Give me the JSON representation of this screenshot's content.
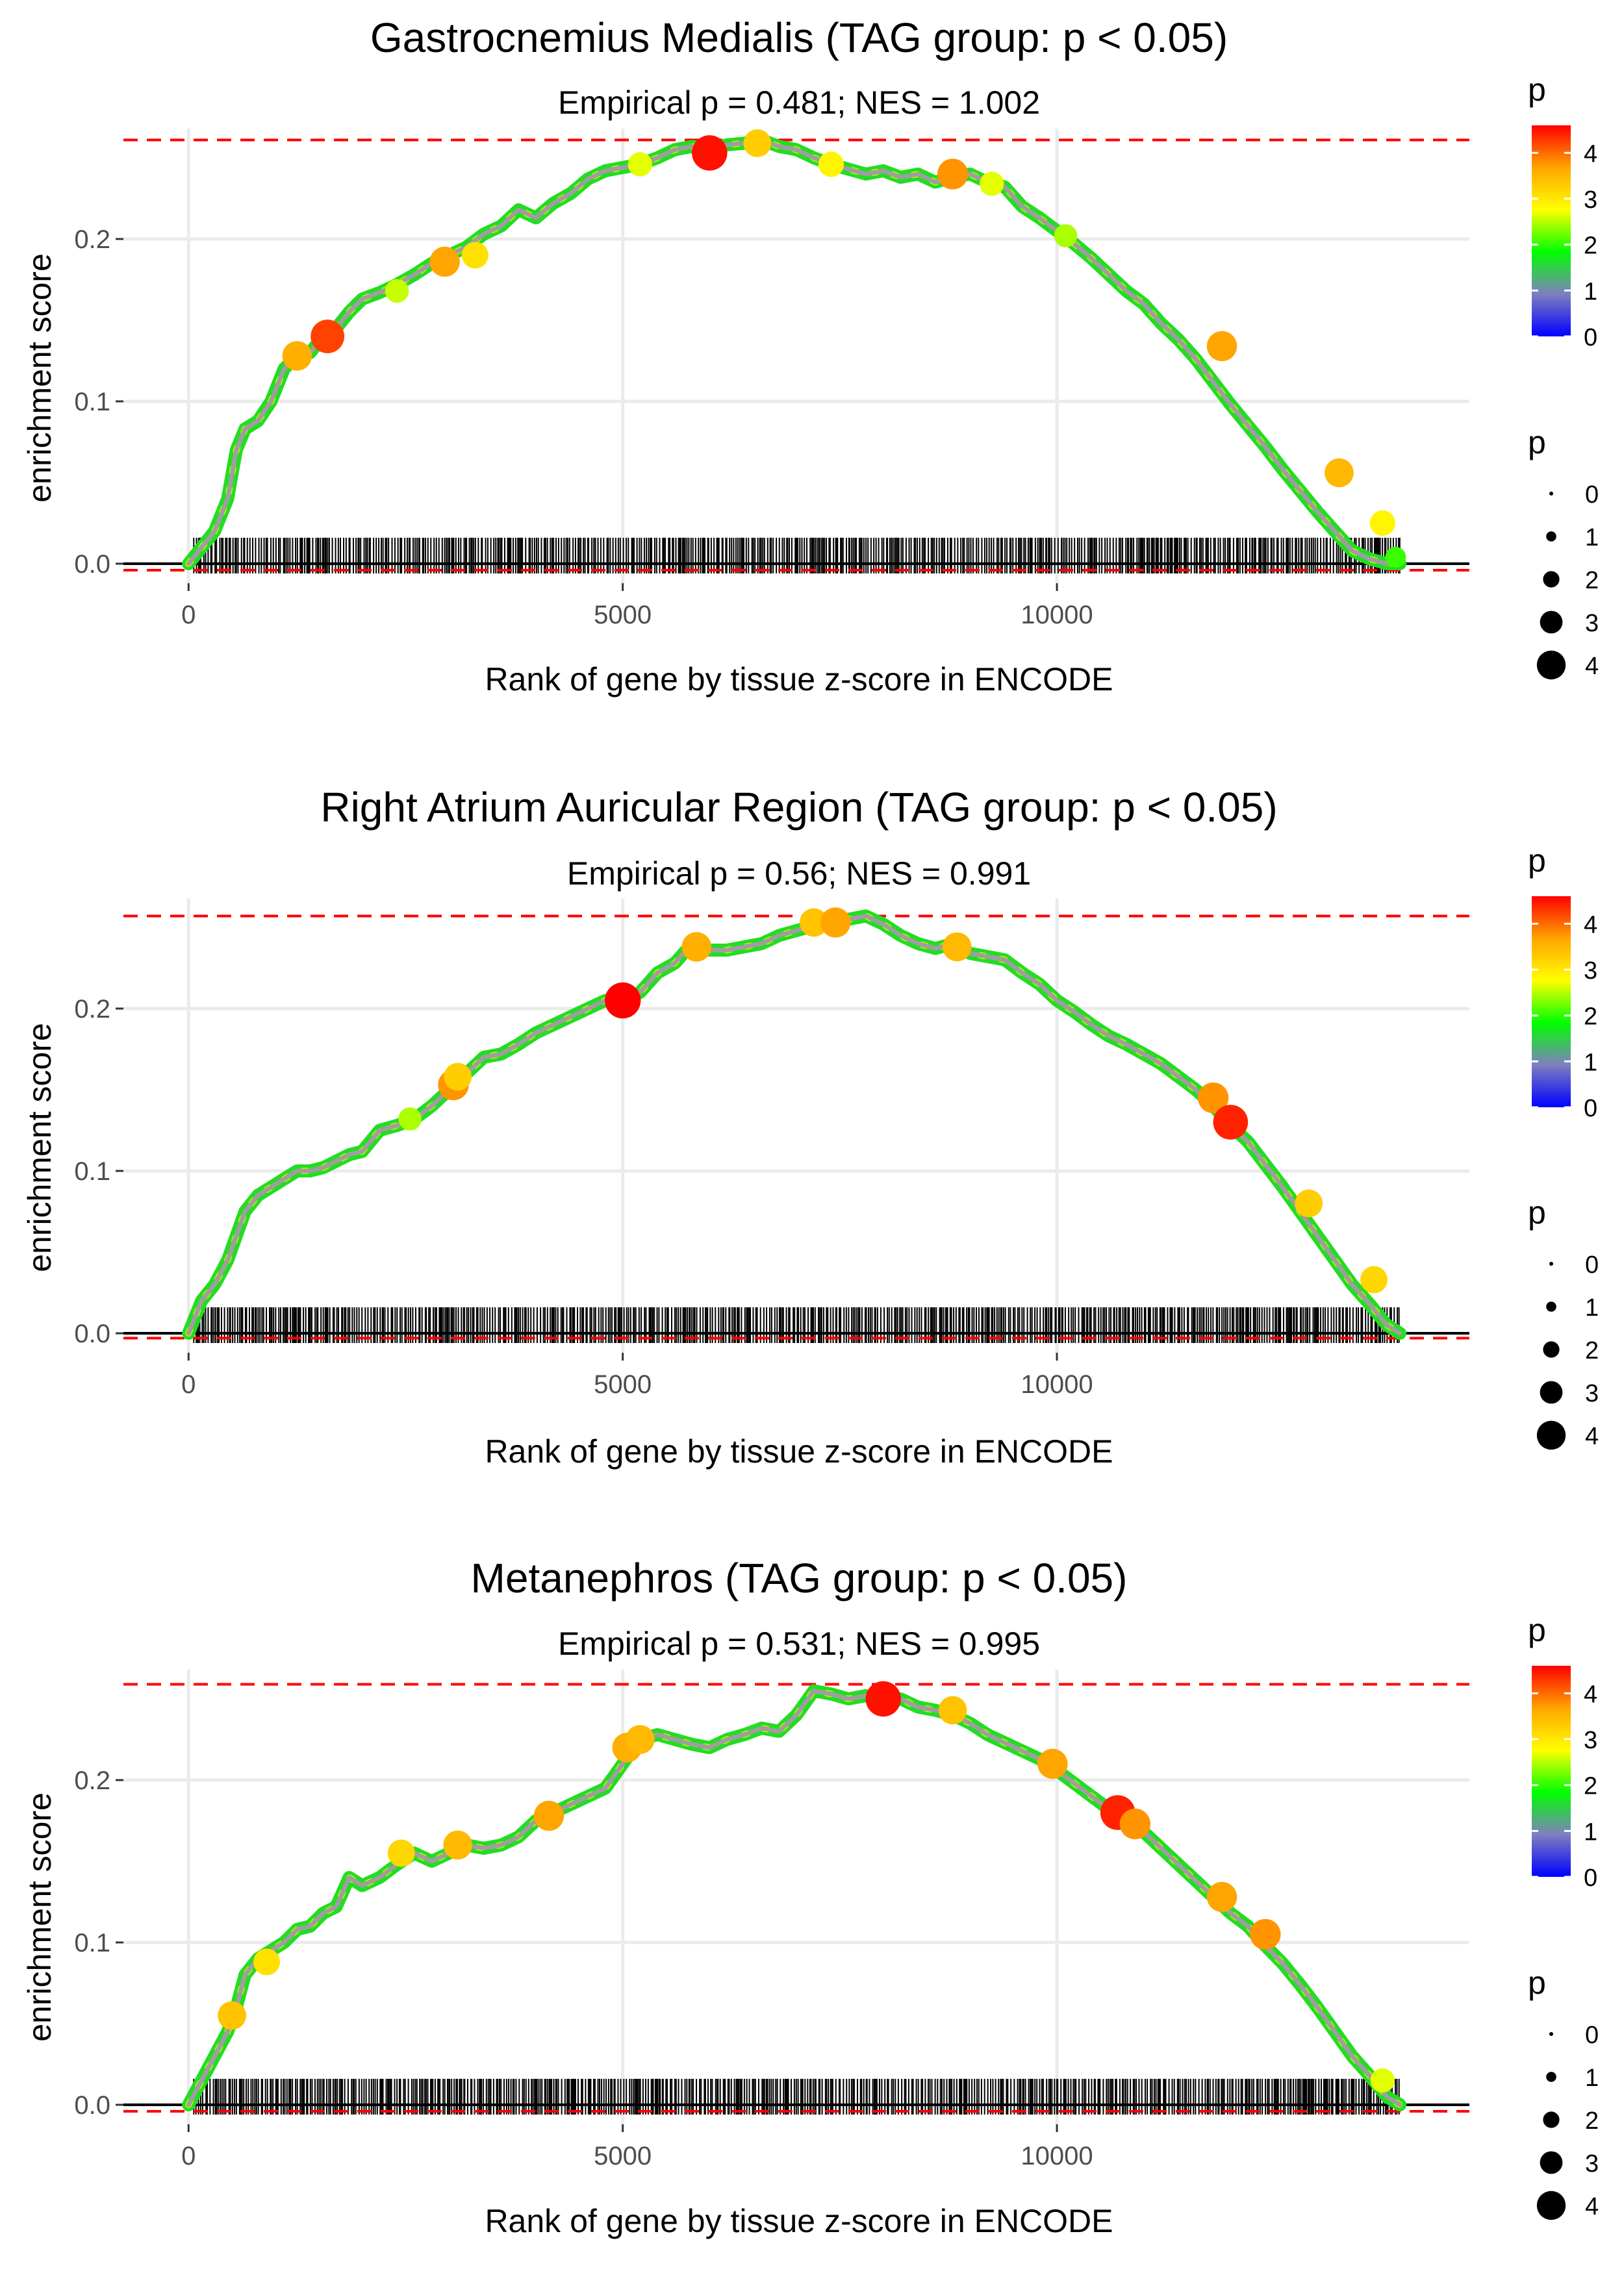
{
  "figure": {
    "xlabel": "Rank of gene by tissue z-score in ENCODE",
    "ylabel": "enrichment score",
    "legend_color_title": "p",
    "legend_size_title": "p",
    "colorbar_ticks": [
      "0",
      "1",
      "2",
      "3",
      "4"
    ],
    "size_legend_labels": [
      "0",
      "1",
      "2",
      "3",
      "4"
    ],
    "colorbar_stops": [
      "#0000ff",
      "#7f7fbf",
      "#00ff00",
      "#ffff00",
      "#ffa500",
      "#ff0000"
    ],
    "colors": {
      "threshold_line": "#ff0000",
      "zero_line": "#000000",
      "grid": "#ebebeb",
      "curve": "#9e9e9e"
    }
  },
  "chart_data": [
    {
      "type": "line",
      "title": "Gastrocnemius Medialis (TAG group: p < 0.05)",
      "subtitle": "Empirical p = 0.481; NES = 1.002",
      "xlabel": "Rank of gene by tissue z-score in ENCODE",
      "ylabel": "enrichment score",
      "xlim": [
        -750,
        14750
      ],
      "ylim": [
        -0.012,
        0.268
      ],
      "x_ticks": [
        0,
        5000,
        10000
      ],
      "x_tick_labels": [
        "0",
        "5000",
        "10000"
      ],
      "y_ticks": [
        0.0,
        0.1,
        0.2
      ],
      "y_tick_labels": [
        "0.0",
        "0.1",
        "0.2"
      ],
      "max_es_line": 0.261,
      "min_es_line": -0.004,
      "curve": {
        "x": [
          0,
          150,
          300,
          450,
          550,
          650,
          800,
          950,
          1100,
          1250,
          1400,
          1550,
          1700,
          1850,
          2000,
          2200,
          2400,
          2600,
          2800,
          3000,
          3200,
          3400,
          3600,
          3800,
          4000,
          4200,
          4400,
          4600,
          4800,
          5000,
          5200,
          5400,
          5600,
          5800,
          6000,
          6200,
          6400,
          6600,
          6800,
          7000,
          7200,
          7400,
          7600,
          7800,
          8000,
          8200,
          8400,
          8600,
          8800,
          9000,
          9200,
          9400,
          9600,
          9800,
          10000,
          10200,
          10400,
          10600,
          10800,
          11000,
          11200,
          11400,
          11600,
          11800,
          12000,
          12200,
          12400,
          12600,
          12800,
          13000,
          13200,
          13400,
          13600,
          13800,
          13950
        ],
        "y": [
          0.0,
          0.01,
          0.02,
          0.04,
          0.07,
          0.083,
          0.088,
          0.1,
          0.12,
          0.128,
          0.13,
          0.14,
          0.145,
          0.155,
          0.163,
          0.167,
          0.172,
          0.178,
          0.185,
          0.19,
          0.195,
          0.203,
          0.208,
          0.218,
          0.213,
          0.222,
          0.228,
          0.237,
          0.242,
          0.244,
          0.246,
          0.25,
          0.255,
          0.257,
          0.255,
          0.258,
          0.259,
          0.261,
          0.257,
          0.255,
          0.25,
          0.246,
          0.243,
          0.24,
          0.242,
          0.238,
          0.24,
          0.235,
          0.238,
          0.24,
          0.235,
          0.232,
          0.22,
          0.213,
          0.205,
          0.197,
          0.188,
          0.178,
          0.168,
          0.16,
          0.148,
          0.138,
          0.126,
          0.112,
          0.098,
          0.085,
          0.072,
          0.058,
          0.045,
          0.032,
          0.02,
          0.008,
          0.003,
          0.0,
          0.0
        ]
      },
      "highlight_points": [
        {
          "x": 1250,
          "y": 0.128,
          "p": 3.5
        },
        {
          "x": 1600,
          "y": 0.14,
          "p": 4.2
        },
        {
          "x": 2400,
          "y": 0.168,
          "p": 2.5
        },
        {
          "x": 2950,
          "y": 0.186,
          "p": 3.6
        },
        {
          "x": 3300,
          "y": 0.19,
          "p": 3.0
        },
        {
          "x": 5200,
          "y": 0.246,
          "p": 2.6
        },
        {
          "x": 6000,
          "y": 0.253,
          "p": 4.5
        },
        {
          "x": 6550,
          "y": 0.259,
          "p": 3.2
        },
        {
          "x": 7400,
          "y": 0.246,
          "p": 2.8
        },
        {
          "x": 8800,
          "y": 0.24,
          "p": 3.7
        },
        {
          "x": 9250,
          "y": 0.234,
          "p": 2.6
        },
        {
          "x": 10100,
          "y": 0.202,
          "p": 2.4
        },
        {
          "x": 11900,
          "y": 0.134,
          "p": 3.6
        },
        {
          "x": 13250,
          "y": 0.056,
          "p": 3.4
        },
        {
          "x": 13750,
          "y": 0.025,
          "p": 2.8
        },
        {
          "x": 13900,
          "y": 0.004,
          "p": 2.0
        }
      ]
    },
    {
      "type": "line",
      "title": "Right Atrium Auricular Region (TAG group: p < 0.05)",
      "subtitle": "Empirical p = 0.56; NES = 0.991",
      "xlabel": "Rank of gene by tissue z-score in ENCODE",
      "ylabel": "enrichment score",
      "xlim": [
        -750,
        14750
      ],
      "ylim": [
        -0.012,
        0.268
      ],
      "x_ticks": [
        0,
        5000,
        10000
      ],
      "x_tick_labels": [
        "0",
        "5000",
        "10000"
      ],
      "y_ticks": [
        0.0,
        0.1,
        0.2
      ],
      "y_tick_labels": [
        "0.0",
        "0.1",
        "0.2"
      ],
      "max_es_line": 0.257,
      "min_es_line": -0.003,
      "curve": {
        "x": [
          0,
          150,
          300,
          450,
          550,
          650,
          800,
          950,
          1100,
          1250,
          1400,
          1550,
          1700,
          1850,
          2000,
          2200,
          2400,
          2600,
          2800,
          3000,
          3200,
          3400,
          3600,
          3800,
          4000,
          4200,
          4400,
          4600,
          4800,
          5000,
          5200,
          5400,
          5600,
          5800,
          6000,
          6200,
          6400,
          6600,
          6800,
          7000,
          7200,
          7400,
          7600,
          7800,
          8000,
          8200,
          8400,
          8600,
          8800,
          9000,
          9200,
          9400,
          9600,
          9800,
          10000,
          10200,
          10400,
          10600,
          10800,
          11000,
          11200,
          11400,
          11600,
          11800,
          12000,
          12200,
          12400,
          12600,
          12800,
          13000,
          13200,
          13400,
          13600,
          13800,
          13950
        ],
        "y": [
          0.0,
          0.02,
          0.03,
          0.045,
          0.06,
          0.075,
          0.085,
          0.09,
          0.095,
          0.1,
          0.1,
          0.102,
          0.106,
          0.11,
          0.112,
          0.125,
          0.128,
          0.132,
          0.14,
          0.15,
          0.16,
          0.17,
          0.172,
          0.178,
          0.185,
          0.19,
          0.195,
          0.2,
          0.205,
          0.205,
          0.21,
          0.222,
          0.228,
          0.24,
          0.236,
          0.236,
          0.238,
          0.24,
          0.245,
          0.248,
          0.251,
          0.253,
          0.255,
          0.257,
          0.252,
          0.245,
          0.24,
          0.237,
          0.24,
          0.234,
          0.232,
          0.23,
          0.222,
          0.215,
          0.205,
          0.198,
          0.19,
          0.183,
          0.178,
          0.172,
          0.166,
          0.158,
          0.15,
          0.14,
          0.128,
          0.118,
          0.104,
          0.09,
          0.075,
          0.06,
          0.045,
          0.03,
          0.018,
          0.005,
          0.0
        ]
      },
      "highlight_points": [
        {
          "x": 3050,
          "y": 0.153,
          "p": 3.7
        },
        {
          "x": 3100,
          "y": 0.158,
          "p": 3.2
        },
        {
          "x": 2550,
          "y": 0.132,
          "p": 2.4
        },
        {
          "x": 5000,
          "y": 0.205,
          "p": 4.6
        },
        {
          "x": 5850,
          "y": 0.238,
          "p": 3.5
        },
        {
          "x": 7200,
          "y": 0.253,
          "p": 3.3
        },
        {
          "x": 7450,
          "y": 0.253,
          "p": 3.6
        },
        {
          "x": 8850,
          "y": 0.238,
          "p": 3.4
        },
        {
          "x": 11800,
          "y": 0.145,
          "p": 3.7
        },
        {
          "x": 12000,
          "y": 0.13,
          "p": 4.4
        },
        {
          "x": 12900,
          "y": 0.08,
          "p": 3.2
        },
        {
          "x": 13650,
          "y": 0.033,
          "p": 3.1
        }
      ]
    },
    {
      "type": "line",
      "title": "Metanephros (TAG group: p < 0.05)",
      "subtitle": "Empirical p = 0.531; NES = 0.995",
      "xlabel": "Rank of gene by tissue z-score in ENCODE",
      "ylabel": "enrichment score",
      "xlim": [
        -750,
        14750
      ],
      "ylim": [
        -0.012,
        0.268
      ],
      "x_ticks": [
        0,
        5000,
        10000
      ],
      "x_tick_labels": [
        "0",
        "5000",
        "10000"
      ],
      "y_ticks": [
        0.0,
        0.1,
        0.2
      ],
      "y_tick_labels": [
        "0.0",
        "0.1",
        "0.2"
      ],
      "max_es_line": 0.259,
      "min_es_line": -0.004,
      "curve": {
        "x": [
          0,
          150,
          300,
          450,
          550,
          650,
          800,
          950,
          1100,
          1250,
          1400,
          1550,
          1700,
          1850,
          2000,
          2200,
          2400,
          2600,
          2800,
          3000,
          3200,
          3400,
          3600,
          3800,
          4000,
          4200,
          4400,
          4600,
          4800,
          5000,
          5200,
          5400,
          5600,
          5800,
          6000,
          6200,
          6400,
          6600,
          6800,
          7000,
          7200,
          7400,
          7600,
          7800,
          8000,
          8200,
          8400,
          8600,
          8800,
          9000,
          9200,
          9400,
          9600,
          9800,
          10000,
          10200,
          10400,
          10600,
          10800,
          11000,
          11200,
          11400,
          11600,
          11800,
          12000,
          12200,
          12400,
          12600,
          12800,
          13000,
          13200,
          13400,
          13600,
          13800,
          13950
        ],
        "y": [
          0.0,
          0.015,
          0.03,
          0.045,
          0.06,
          0.08,
          0.09,
          0.095,
          0.1,
          0.108,
          0.11,
          0.118,
          0.122,
          0.14,
          0.135,
          0.14,
          0.148,
          0.155,
          0.15,
          0.155,
          0.16,
          0.158,
          0.16,
          0.165,
          0.175,
          0.18,
          0.185,
          0.19,
          0.195,
          0.21,
          0.225,
          0.228,
          0.225,
          0.222,
          0.22,
          0.225,
          0.228,
          0.232,
          0.23,
          0.24,
          0.255,
          0.253,
          0.25,
          0.252,
          0.248,
          0.25,
          0.245,
          0.243,
          0.24,
          0.235,
          0.228,
          0.223,
          0.218,
          0.213,
          0.206,
          0.198,
          0.19,
          0.182,
          0.175,
          0.168,
          0.158,
          0.148,
          0.138,
          0.128,
          0.118,
          0.11,
          0.098,
          0.087,
          0.074,
          0.06,
          0.045,
          0.03,
          0.018,
          0.005,
          0.0
        ]
      },
      "highlight_points": [
        {
          "x": 500,
          "y": 0.055,
          "p": 3.3
        },
        {
          "x": 900,
          "y": 0.088,
          "p": 3.0
        },
        {
          "x": 2450,
          "y": 0.155,
          "p": 3.1
        },
        {
          "x": 3100,
          "y": 0.16,
          "p": 3.4
        },
        {
          "x": 4150,
          "y": 0.178,
          "p": 3.6
        },
        {
          "x": 5050,
          "y": 0.22,
          "p": 3.5
        },
        {
          "x": 5200,
          "y": 0.225,
          "p": 3.4
        },
        {
          "x": 8000,
          "y": 0.25,
          "p": 4.5
        },
        {
          "x": 8800,
          "y": 0.243,
          "p": 3.3
        },
        {
          "x": 9950,
          "y": 0.21,
          "p": 3.6
        },
        {
          "x": 10700,
          "y": 0.18,
          "p": 4.4
        },
        {
          "x": 10900,
          "y": 0.173,
          "p": 3.7
        },
        {
          "x": 11900,
          "y": 0.128,
          "p": 3.6
        },
        {
          "x": 12400,
          "y": 0.105,
          "p": 3.7
        },
        {
          "x": 13750,
          "y": 0.015,
          "p": 2.6
        }
      ]
    }
  ]
}
